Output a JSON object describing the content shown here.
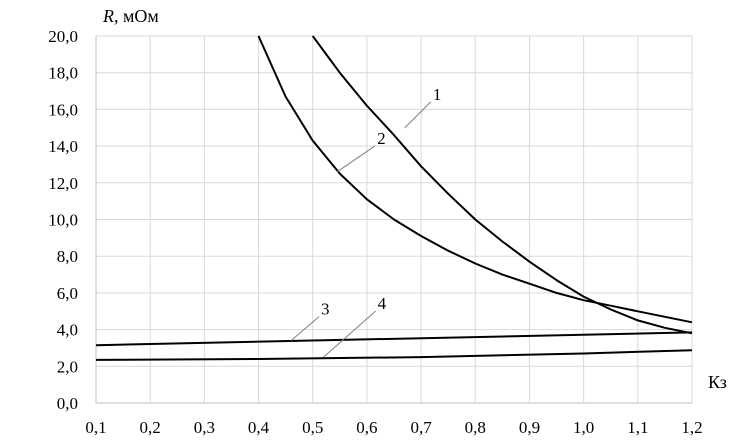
{
  "chart_data": {
    "type": "line",
    "xlabel": "Кз",
    "ylabel_italic": "R",
    "ylabel_rest": ", мОм",
    "xlim": [
      0.1,
      1.2
    ],
    "ylim": [
      0,
      20
    ],
    "x_ticks": [
      "0,1",
      "0,2",
      "0,3",
      "0,4",
      "0,5",
      "0,6",
      "0,7",
      "0,8",
      "0,9",
      "1,0",
      "1,1",
      "1,2"
    ],
    "y_ticks": [
      "0,0",
      "2,0",
      "4,0",
      "6,0",
      "8,0",
      "10,0",
      "12,0",
      "14,0",
      "16,0",
      "18,0",
      "20,0"
    ],
    "grid": true,
    "series": [
      {
        "name": "1",
        "x": [
          0.5,
          0.55,
          0.6,
          0.65,
          0.7,
          0.75,
          0.8,
          0.85,
          0.9,
          0.95,
          1.0,
          1.05,
          1.1,
          1.15,
          1.2
        ],
        "values": [
          20.0,
          18.0,
          16.2,
          14.6,
          12.9,
          11.4,
          10.0,
          8.8,
          7.7,
          6.7,
          5.8,
          5.1,
          4.5,
          4.1,
          3.8
        ]
      },
      {
        "name": "2",
        "x": [
          0.4,
          0.45,
          0.5,
          0.55,
          0.6,
          0.65,
          0.7,
          0.75,
          0.8,
          0.85,
          0.9,
          0.95,
          1.0,
          1.05,
          1.1,
          1.15,
          1.2
        ],
        "values": [
          20.0,
          16.7,
          14.3,
          12.5,
          11.1,
          10.0,
          9.1,
          8.3,
          7.6,
          7.0,
          6.5,
          6.0,
          5.6,
          5.3,
          5.0,
          4.7,
          4.4
        ]
      },
      {
        "name": "3",
        "x": [
          0.1,
          1.2
        ],
        "values": [
          3.15,
          3.85
        ]
      },
      {
        "name": "4",
        "x": [
          0.1,
          0.4,
          0.7,
          1.0,
          1.2
        ],
        "values": [
          2.35,
          2.4,
          2.5,
          2.7,
          2.88
        ]
      }
    ],
    "labels": [
      {
        "text": "1",
        "x": 0.67,
        "y": 15.0,
        "dx": 26,
        "dy": -26
      },
      {
        "text": "2",
        "x": 0.545,
        "y": 12.6,
        "dx": 38,
        "dy": -26
      },
      {
        "text": "3",
        "x": 0.46,
        "y": 3.4,
        "dx": 28,
        "dy": -24
      },
      {
        "text": "4",
        "x": 0.52,
        "y": 2.5,
        "dx": 52,
        "dy": -46
      }
    ]
  }
}
